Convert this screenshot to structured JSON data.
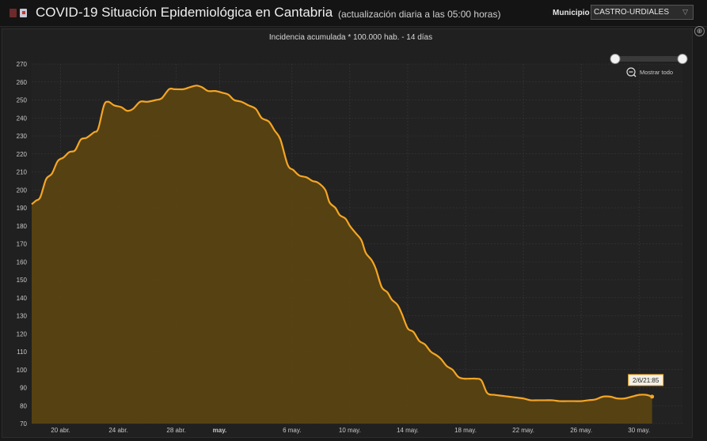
{
  "header": {
    "title": "COVID-19 Situación Epidemiológica en Cantabria",
    "subtitle": "(actualización diaria a las 05:00 horas)",
    "municipio_label": "Municipio",
    "municipio_value": "CASTRO-URDIALES",
    "logo_icons": [
      "cantabria-flag-icon",
      "health-service-icon"
    ]
  },
  "chart_data": {
    "type": "area",
    "title": "Incidencia acumulada * 100.000 hab. - 14 días",
    "xlabel": "",
    "ylabel": "",
    "ylim": [
      70,
      270
    ],
    "y_ticks": [
      70,
      80,
      90,
      100,
      110,
      120,
      130,
      140,
      150,
      160,
      170,
      180,
      190,
      200,
      210,
      220,
      230,
      240,
      250,
      260,
      270
    ],
    "x_tick_labels": [
      "20 abr.",
      "24 abr.",
      "28 abr.",
      "may.",
      "6 may.",
      "10 may.",
      "14 may.",
      "18 may.",
      "22 may.",
      "26 may.",
      "30 may."
    ],
    "grid": true,
    "line_color": "#f5a623",
    "fill_color": "#5a4312",
    "x_start": "2021-04-18",
    "x_end": "2021-06-02",
    "series": [
      {
        "values": [
          [
            0.0,
            192
          ],
          [
            0.3,
            194
          ],
          [
            0.6,
            196
          ],
          [
            1.0,
            206
          ],
          [
            1.4,
            209
          ],
          [
            1.8,
            216
          ],
          [
            2.2,
            218
          ],
          [
            2.6,
            221
          ],
          [
            3.0,
            222
          ],
          [
            3.4,
            228
          ],
          [
            3.8,
            229
          ],
          [
            4.3,
            232
          ],
          [
            4.6,
            234
          ],
          [
            5.0,
            247
          ],
          [
            5.3,
            249
          ],
          [
            5.7,
            247
          ],
          [
            6.2,
            246
          ],
          [
            6.6,
            244
          ],
          [
            7.0,
            245
          ],
          [
            7.5,
            249
          ],
          [
            8.0,
            249
          ],
          [
            8.6,
            250
          ],
          [
            9.0,
            251
          ],
          [
            9.5,
            256
          ],
          [
            9.9,
            256
          ],
          [
            10.5,
            256
          ],
          [
            10.9,
            257
          ],
          [
            11.4,
            258
          ],
          [
            11.8,
            257
          ],
          [
            12.2,
            255
          ],
          [
            12.7,
            255
          ],
          [
            13.2,
            254
          ],
          [
            13.6,
            253
          ],
          [
            14.0,
            250
          ],
          [
            14.5,
            249
          ],
          [
            15.0,
            247
          ],
          [
            15.5,
            245
          ],
          [
            15.9,
            240
          ],
          [
            16.4,
            238
          ],
          [
            16.8,
            233
          ],
          [
            17.2,
            228
          ],
          [
            17.7,
            214
          ],
          [
            18.1,
            211
          ],
          [
            18.5,
            208
          ],
          [
            19.0,
            207
          ],
          [
            19.4,
            205
          ],
          [
            19.8,
            204
          ],
          [
            20.3,
            200
          ],
          [
            20.6,
            193
          ],
          [
            21.0,
            190
          ],
          [
            21.3,
            186
          ],
          [
            21.7,
            184
          ],
          [
            22.0,
            180
          ],
          [
            22.4,
            176
          ],
          [
            22.8,
            172
          ],
          [
            23.1,
            165
          ],
          [
            23.5,
            161
          ],
          [
            23.8,
            156
          ],
          [
            24.2,
            146
          ],
          [
            24.6,
            143
          ],
          [
            24.9,
            139
          ],
          [
            25.3,
            136
          ],
          [
            25.6,
            131
          ],
          [
            26.0,
            123
          ],
          [
            26.4,
            121
          ],
          [
            26.8,
            116
          ],
          [
            27.2,
            114
          ],
          [
            27.6,
            110
          ],
          [
            28.0,
            108
          ],
          [
            28.3,
            106
          ],
          [
            28.7,
            102
          ],
          [
            29.1,
            100
          ],
          [
            29.5,
            96
          ],
          [
            29.9,
            95
          ],
          [
            30.3,
            95
          ],
          [
            30.7,
            95
          ],
          [
            31.1,
            94
          ],
          [
            31.5,
            87
          ],
          [
            32.0,
            86
          ],
          [
            32.5,
            85.5
          ],
          [
            33.0,
            85
          ],
          [
            33.5,
            84.5
          ],
          [
            34.0,
            84
          ],
          [
            34.5,
            83
          ],
          [
            35.0,
            83
          ],
          [
            35.5,
            83
          ],
          [
            36.0,
            83
          ],
          [
            36.5,
            82.5
          ],
          [
            37.0,
            82.5
          ],
          [
            37.5,
            82.5
          ],
          [
            38.0,
            82.5
          ],
          [
            38.5,
            83
          ],
          [
            39.0,
            83.5
          ],
          [
            39.5,
            85
          ],
          [
            40.0,
            85
          ],
          [
            40.5,
            84
          ],
          [
            41.0,
            84
          ],
          [
            41.5,
            85
          ],
          [
            42.0,
            86
          ],
          [
            42.5,
            86
          ],
          [
            42.9,
            85
          ]
        ]
      }
    ],
    "tooltip_label": "2/6/21:85",
    "zoom_link": "Mostrar todo"
  }
}
